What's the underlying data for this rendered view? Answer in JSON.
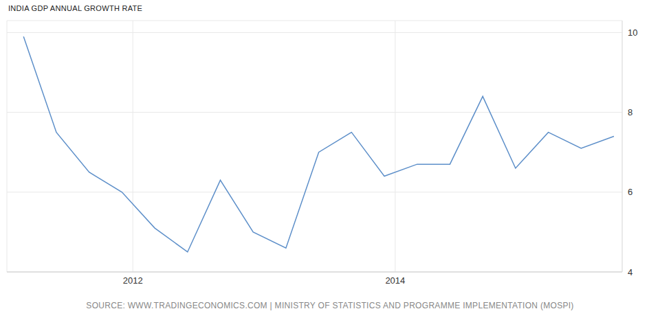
{
  "chart_data": {
    "type": "line",
    "title": "INDIA GDP ANNUAL GROWTH RATE",
    "source": "SOURCE: WWW.TRADINGECONOMICS.COM | MINISTRY OF STATISTICS AND PROGRAMME IMPLEMENTATION (MOSPI)",
    "x": [
      2011.167,
      2011.417,
      2011.667,
      2011.917,
      2012.167,
      2012.417,
      2012.667,
      2012.917,
      2013.167,
      2013.417,
      2013.667,
      2013.917,
      2014.167,
      2014.417,
      2014.667,
      2014.917,
      2015.167,
      2015.417,
      2015.667
    ],
    "values": [
      9.9,
      7.5,
      6.5,
      6.0,
      5.1,
      4.5,
      6.3,
      5.0,
      4.6,
      7.0,
      7.5,
      6.4,
      6.7,
      6.7,
      8.4,
      6.6,
      7.5,
      7.1,
      7.4
    ],
    "color": "#5d8fc9",
    "xlim": [
      2011.04,
      2015.73
    ],
    "xticks": [
      2012,
      2014
    ],
    "ylim": [
      4,
      10.3
    ],
    "yticks": [
      4,
      6,
      8,
      10
    ],
    "grid": true
  }
}
